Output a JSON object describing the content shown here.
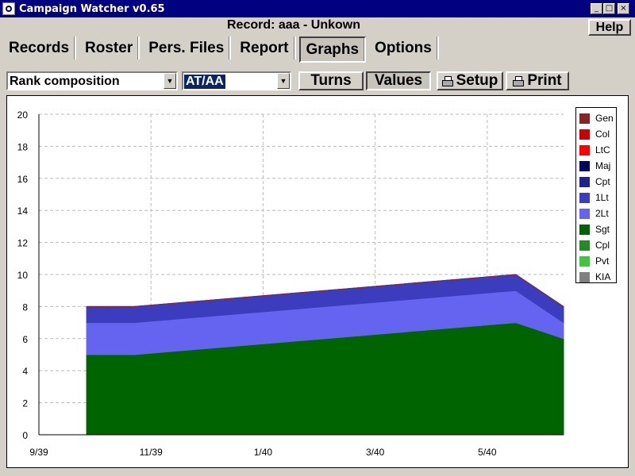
{
  "window": {
    "title": "Campaign Watcher v0.65"
  },
  "record_title": "Record: aaa - Unkown",
  "help_label": "Help",
  "tabs": [
    {
      "label": "Records"
    },
    {
      "label": "Roster"
    },
    {
      "label": "Pers. Files"
    },
    {
      "label": "Report"
    },
    {
      "label": "Graphs",
      "active": true
    },
    {
      "label": "Options"
    }
  ],
  "toolbar": {
    "graph_type": "Rank composition",
    "unit_select": "AT/AA",
    "turns_label": "Turns",
    "values_label": "Values",
    "setup_label": "Setup",
    "print_label": "Print"
  },
  "chart_data": {
    "type": "area",
    "stacked": true,
    "grid": true,
    "ylim": [
      0,
      20
    ],
    "yticks": [
      0,
      2,
      4,
      6,
      8,
      10,
      12,
      14,
      16,
      18,
      20
    ],
    "xlim": [
      0,
      11
    ],
    "xticks": [
      {
        "x": 0,
        "label": "9/39"
      },
      {
        "x": 2.35,
        "label": "11/39"
      },
      {
        "x": 4.7,
        "label": "1/40"
      },
      {
        "x": 7.05,
        "label": "3/40"
      },
      {
        "x": 9.4,
        "label": "5/40"
      }
    ],
    "x": [
      1,
      2,
      10,
      11
    ],
    "series": [
      {
        "name": "Gen",
        "color": "#8b2323",
        "values": [
          0,
          0,
          0,
          0
        ]
      },
      {
        "name": "Col",
        "color": "#cc0000",
        "values": [
          0,
          0,
          0,
          0
        ]
      },
      {
        "name": "LtC",
        "color": "#ff0000",
        "values": [
          0,
          0,
          0,
          0
        ]
      },
      {
        "name": "Maj",
        "color": "#000066",
        "values": [
          0,
          0,
          0,
          0
        ]
      },
      {
        "name": "Cpt",
        "color": "#22228c",
        "values": [
          0,
          0,
          0,
          0
        ]
      },
      {
        "name": "1Lt",
        "color": "#3c3cbe",
        "values": [
          1,
          1,
          1,
          1
        ]
      },
      {
        "name": "2Lt",
        "color": "#6464f0",
        "values": [
          2,
          2,
          2,
          1
        ]
      },
      {
        "name": "Sgt",
        "color": "#006400",
        "values": [
          5,
          5,
          7,
          6
        ]
      },
      {
        "name": "Cpl",
        "color": "#228b22",
        "values": [
          0,
          0,
          0,
          0
        ]
      },
      {
        "name": "Pvt",
        "color": "#3cc83c",
        "values": [
          0,
          0,
          0,
          0
        ]
      },
      {
        "name": "KIA",
        "color": "#808080",
        "values": [
          0,
          0,
          0,
          0
        ]
      }
    ]
  }
}
